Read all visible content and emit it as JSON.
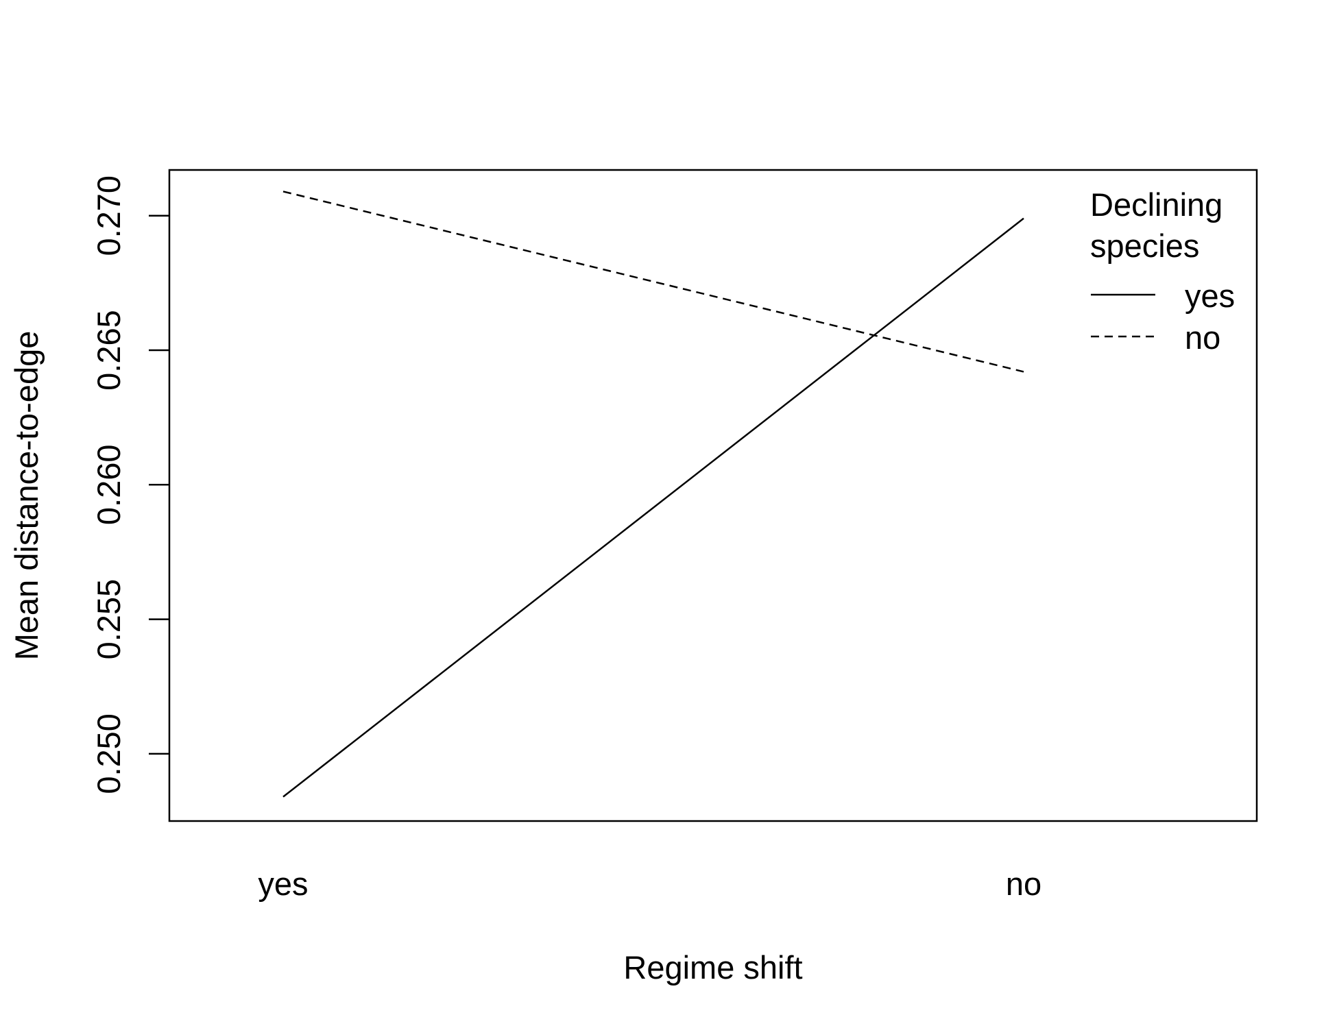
{
  "chart_data": {
    "type": "line",
    "title": "",
    "xlabel": "Regime shift",
    "ylabel": "Mean distance-to-edge",
    "categories": [
      "yes",
      "no"
    ],
    "yticks": [
      "0.250",
      "0.255",
      "0.260",
      "0.265",
      "0.270"
    ],
    "ylim": [
      0.2475,
      0.2717
    ],
    "grid": false,
    "legend": {
      "position": "top-right",
      "title_line1": "Declining",
      "title_line2": "species"
    },
    "series": [
      {
        "name": "yes",
        "line_style": "solid",
        "values": [
          0.2484,
          0.2699
        ]
      },
      {
        "name": "no",
        "line_style": "dashed",
        "values": [
          0.2709,
          0.2642
        ]
      }
    ]
  }
}
